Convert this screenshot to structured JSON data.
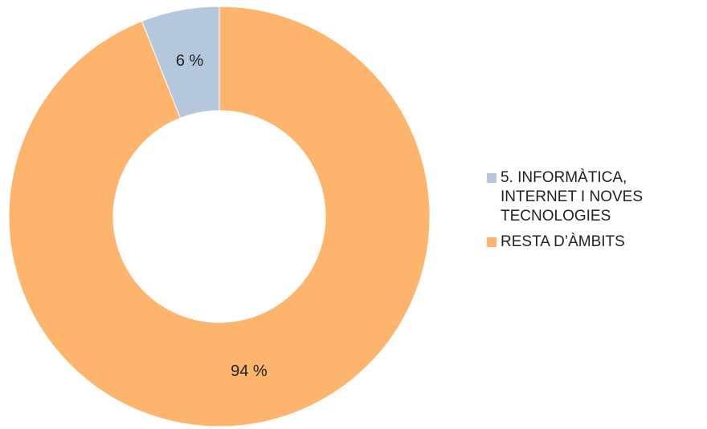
{
  "chart_data": {
    "type": "donut",
    "categories": [
      "5. INFORMÀTICA, INTERNET I NOVES TECNOLOGIES",
      "RESTA D’ÀMBITS"
    ],
    "values": [
      6,
      94
    ],
    "value_labels": [
      "6 %",
      "94 %"
    ],
    "colors": [
      "#b4c7dc",
      "#fdb46c"
    ]
  }
}
